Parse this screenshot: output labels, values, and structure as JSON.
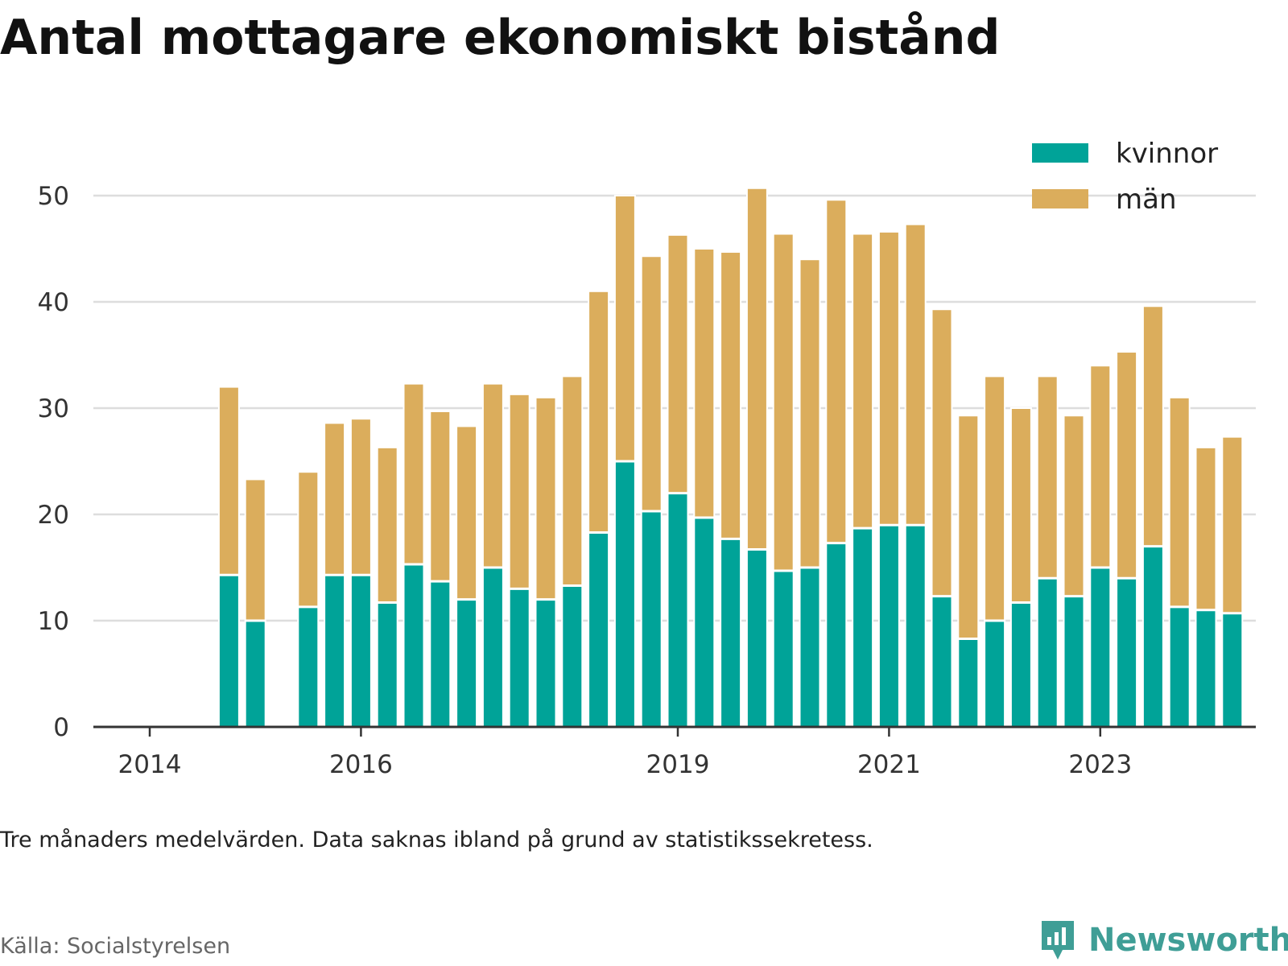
{
  "title": "Antal mottagare ekonomiskt bistånd",
  "note": "Tre månaders medelvärden. Data saknas ibland på grund av statistikssekretess.",
  "source": "Källa: Socialstyrelsen",
  "brand": {
    "name": "Newsworthy",
    "icon": "newsworthy-logo-icon"
  },
  "colors": {
    "kvinnor": "#00a398",
    "man": "#dbad5c",
    "grid": "#dddddd",
    "axis": "#333333"
  },
  "chart_data": {
    "type": "bar",
    "stacked": true,
    "legend_position": "top-right",
    "grid": true,
    "ylim": [
      0,
      50
    ],
    "y_ticks": [
      0,
      10,
      20,
      30,
      40,
      50
    ],
    "x_tick_labels": [
      "2014",
      "2016",
      "2019",
      "2021",
      "2023"
    ],
    "x_tick_positions": [
      "2014-01",
      "2016-01",
      "2019-01",
      "2021-01",
      "2023-01"
    ],
    "categories": [
      "2014-01",
      "2014-04",
      "2014-07",
      "2014-10",
      "2015-01",
      "2015-04",
      "2015-07",
      "2015-10",
      "2016-01",
      "2016-04",
      "2016-07",
      "2016-10",
      "2017-01",
      "2017-04",
      "2017-07",
      "2017-10",
      "2018-01",
      "2018-04",
      "2018-07",
      "2018-10",
      "2019-01",
      "2019-04",
      "2019-07",
      "2019-10",
      "2020-01",
      "2020-04",
      "2020-07",
      "2020-10",
      "2021-01",
      "2021-04",
      "2021-07",
      "2021-10",
      "2022-01",
      "2022-04",
      "2022-07",
      "2022-10",
      "2023-01",
      "2023-04",
      "2023-07",
      "2023-10",
      "2024-01",
      "2024-04"
    ],
    "series": [
      {
        "name": "kvinnor",
        "values": [
          null,
          null,
          null,
          14.3,
          10.0,
          null,
          11.3,
          14.3,
          14.3,
          11.7,
          15.3,
          13.7,
          12.0,
          15.0,
          13.0,
          12.0,
          13.3,
          18.3,
          25.0,
          20.3,
          22.0,
          19.7,
          17.7,
          16.7,
          14.7,
          15.0,
          17.3,
          18.7,
          19.0,
          19.0,
          12.3,
          8.3,
          10.0,
          11.7,
          14.0,
          12.3,
          15.0,
          14.0,
          17.0,
          11.3,
          11.0,
          10.7
        ]
      },
      {
        "name": "män",
        "values": [
          null,
          null,
          null,
          17.7,
          13.3,
          null,
          12.7,
          14.3,
          14.7,
          14.6,
          17.0,
          16.0,
          16.3,
          17.3,
          18.3,
          19.0,
          19.7,
          22.7,
          25.0,
          24.0,
          24.3,
          25.3,
          27.0,
          34.0,
          31.7,
          29.0,
          32.3,
          27.7,
          27.6,
          28.3,
          27.0,
          21.0,
          23.0,
          18.3,
          19.0,
          17.0,
          19.0,
          21.3,
          22.6,
          19.7,
          15.3,
          16.6
        ]
      }
    ]
  }
}
